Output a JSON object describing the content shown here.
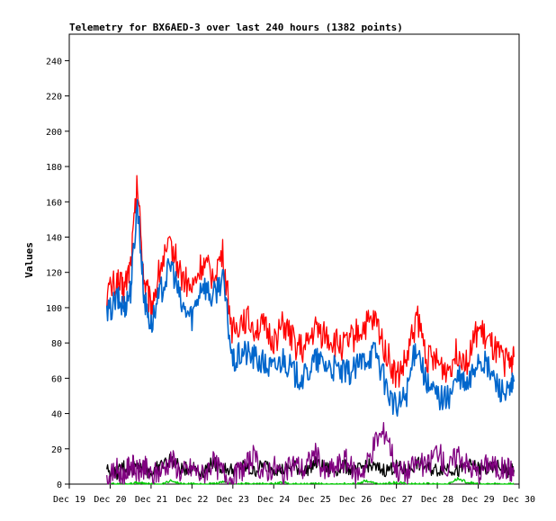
{
  "chart_data": {
    "type": "line",
    "title": "Telemetry for BX6AED-3 over last 240 hours (1382 points)",
    "xlabel": "",
    "ylabel": "Values",
    "xlim": [
      "Dec 19",
      "Dec 30"
    ],
    "ylim": [
      0,
      255
    ],
    "x_tick_labels": [
      "Dec 19",
      "Dec 20",
      "Dec 21",
      "Dec 22",
      "Dec 23",
      "Dec 24",
      "Dec 25",
      "Dec 26",
      "Dec 27",
      "Dec 28",
      "Dec 29",
      "Dec 30"
    ],
    "y_ticks": [
      0,
      20,
      40,
      60,
      80,
      100,
      120,
      140,
      160,
      180,
      200,
      220,
      240
    ],
    "grid": false,
    "legend": "none",
    "x": [
      "Dec 19 22:00",
      "Dec 20 04:00",
      "Dec 20 08:00",
      "Dec 20 12:00",
      "Dec 20 16:00",
      "Dec 20 20:00",
      "Dec 21 00:00",
      "Dec 21 06:00",
      "Dec 21 12:00",
      "Dec 21 18:00",
      "Dec 22 00:00",
      "Dec 22 06:00",
      "Dec 22 12:00",
      "Dec 22 18:00",
      "Dec 23 00:00",
      "Dec 23 06:00",
      "Dec 23 12:00",
      "Dec 23 18:00",
      "Dec 24 00:00",
      "Dec 24 06:00",
      "Dec 24 12:00",
      "Dec 24 18:00",
      "Dec 25 00:00",
      "Dec 25 06:00",
      "Dec 25 12:00",
      "Dec 25 18:00",
      "Dec 26 00:00",
      "Dec 26 06:00",
      "Dec 26 12:00",
      "Dec 26 18:00",
      "Dec 27 00:00",
      "Dec 27 06:00",
      "Dec 27 12:00",
      "Dec 27 18:00",
      "Dec 28 00:00",
      "Dec 28 06:00",
      "Dec 28 12:00",
      "Dec 28 18:00",
      "Dec 29 00:00",
      "Dec 29 06:00",
      "Dec 29 12:00",
      "Dec 29 18:00",
      "Dec 29 21:00"
    ],
    "series": [
      {
        "color": "#ff0000",
        "values": [
          108,
          115,
          110,
          125,
          170,
          115,
          100,
          125,
          135,
          118,
          110,
          125,
          118,
          130,
          85,
          95,
          90,
          88,
          82,
          90,
          80,
          75,
          88,
          85,
          80,
          78,
          85,
          90,
          92,
          75,
          60,
          70,
          95,
          72,
          68,
          65,
          75,
          70,
          88,
          80,
          72,
          68,
          72
        ]
      },
      {
        "color": "#0066cc",
        "values": [
          95,
          105,
          100,
          110,
          160,
          105,
          90,
          110,
          125,
          100,
          95,
          115,
          105,
          118,
          68,
          75,
          72,
          68,
          65,
          72,
          62,
          60,
          70,
          68,
          65,
          62,
          65,
          72,
          75,
          55,
          42,
          52,
          80,
          55,
          50,
          48,
          60,
          55,
          72,
          65,
          55,
          50,
          58
        ]
      },
      {
        "color": "#800080",
        "values": [
          2,
          8,
          4,
          12,
          6,
          10,
          4,
          8,
          14,
          6,
          9,
          5,
          12,
          7,
          3,
          9,
          15,
          6,
          10,
          5,
          12,
          8,
          18,
          6,
          9,
          14,
          5,
          10,
          25,
          30,
          8,
          6,
          12,
          9,
          20,
          7,
          18,
          10,
          6,
          12,
          8,
          9,
          5
        ]
      },
      {
        "color": "#000000",
        "values": [
          8,
          6,
          10,
          7,
          12,
          9,
          6,
          11,
          14,
          8,
          10,
          7,
          12,
          9,
          8,
          10,
          7,
          11,
          9,
          8,
          10,
          7,
          12,
          9,
          8,
          10,
          7,
          11,
          9,
          8,
          10,
          7,
          12,
          9,
          8,
          10,
          7,
          11,
          9,
          8,
          10,
          7,
          8
        ]
      },
      {
        "color": "#00cc00",
        "values": [
          0,
          0,
          0,
          0,
          1,
          0,
          0,
          0,
          2,
          0,
          0,
          0,
          0,
          1,
          0,
          0,
          0,
          0,
          0,
          1,
          0,
          0,
          0,
          0,
          0,
          0,
          0,
          2,
          0,
          0,
          1,
          0,
          0,
          0,
          0,
          0,
          3,
          1,
          0,
          0,
          0,
          0,
          0
        ]
      }
    ]
  }
}
